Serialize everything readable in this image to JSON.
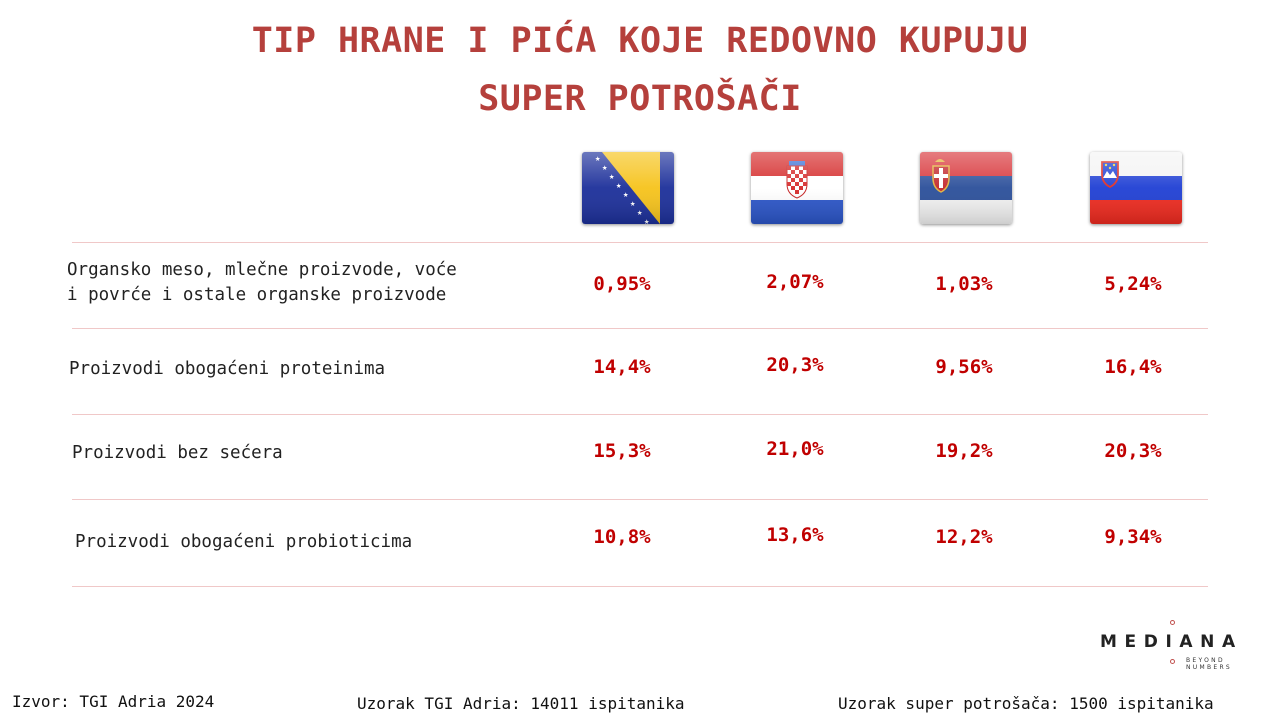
{
  "title": {
    "line1": "TIP HRANE I PIĆA KOJE REDOVNO KUPUJU",
    "line2": "SUPER POTROŠAČI"
  },
  "columns": [
    {
      "flag": "bosnia-and-herzegovina-flag-icon"
    },
    {
      "flag": "croatia-flag-icon"
    },
    {
      "flag": "serbia-flag-icon"
    },
    {
      "flag": "slovenia-flag-icon"
    }
  ],
  "rows": [
    {
      "label_line1": "Organsko meso, mlečne proizvode, voće",
      "label_line2": "i povrće i ostale organske proizvode",
      "values": [
        "0,95%",
        "2,07%",
        "1,03%",
        "5,24%"
      ]
    },
    {
      "label": "Proizvodi obogaćeni proteinima",
      "values": [
        "14,4%",
        "20,3%",
        "9,56%",
        "16,4%"
      ]
    },
    {
      "label": "Proizvodi bez sećera",
      "values": [
        "15,3%",
        "21,0%",
        "19,2%",
        "20,3%"
      ]
    },
    {
      "label": "Proizvodi obogaćeni probioticima",
      "values": [
        "10,8%",
        "13,6%",
        "12,2%",
        "9,34%"
      ]
    }
  ],
  "chart_data": {
    "type": "table",
    "title": "TIP HRANE I PIĆA KOJE REDOVNO KUPUJU SUPER POTROŠAČI",
    "columns": [
      "Bosnia and Herzegovina",
      "Croatia",
      "Serbia",
      "Slovenia"
    ],
    "categories": [
      "Organsko meso, mlečne proizvode, voće i povrće i ostale organske proizvode",
      "Proizvodi obogaćeni proteinima",
      "Proizvodi bez sećera",
      "Proizvodi obogaćeni probioticima"
    ],
    "series": [
      {
        "values": [
          0.95,
          14.4,
          15.3,
          10.8
        ]
      },
      {
        "values": [
          2.07,
          20.3,
          21.0,
          13.6
        ]
      },
      {
        "values": [
          1.03,
          9.56,
          19.2,
          12.2
        ]
      },
      {
        "values": [
          5.24,
          16.4,
          20.3,
          9.34
        ]
      }
    ]
  },
  "logo": {
    "name": "MEDIANA",
    "tagline_line1": "BEYOND",
    "tagline_line2": "NUMBERS"
  },
  "footer": {
    "source": "Izvor: TGI Adria 2024",
    "sample_tgi": "Uzorak TGI Adria: 14011 ispitanika",
    "sample_super": "Uzorak super potrošača: 1500 ispitanika"
  },
  "colors": {
    "title": "#b5403c",
    "values": "#c00000",
    "rule": "#f0c8c8"
  }
}
